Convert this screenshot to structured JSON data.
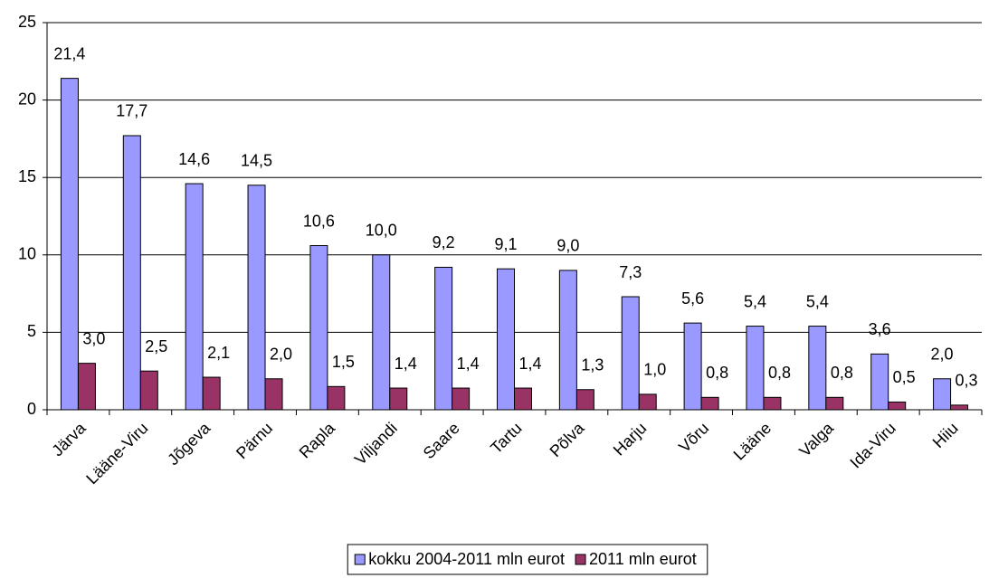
{
  "chart_data": {
    "type": "bar",
    "categories": [
      "Järva",
      "Lääne-Viru",
      "Jõgeva",
      "Pärnu",
      "Rapla",
      "Viljandi",
      "Saare",
      "Tartu",
      "Põlva",
      "Harju",
      "Võru",
      "Lääne",
      "Valga",
      "Ida-Viru",
      "Hiiu"
    ],
    "series": [
      {
        "name": "kokku 2004-2011 mln eurot",
        "color": "#9999ff",
        "values": [
          21.4,
          17.7,
          14.6,
          14.5,
          10.6,
          10.0,
          9.2,
          9.1,
          9.0,
          7.3,
          5.6,
          5.4,
          5.4,
          3.6,
          2.0
        ],
        "value_labels": [
          "21,4",
          "17,7",
          "14,6",
          "14,5",
          "10,6",
          "10,0",
          "9,2",
          "9,1",
          "9,0",
          "7,3",
          "5,6",
          "5,4",
          "5,4",
          "3,6",
          "2,0"
        ]
      },
      {
        "name": "2011 mln eurot",
        "color": "#993366",
        "values": [
          3.0,
          2.5,
          2.1,
          2.0,
          1.5,
          1.4,
          1.4,
          1.4,
          1.3,
          1.0,
          0.8,
          0.8,
          0.8,
          0.5,
          0.3
        ],
        "value_labels": [
          "3,0",
          "2,5",
          "2,1",
          "2,0",
          "1,5",
          "1,4",
          "1,4",
          "1,4",
          "1,3",
          "1,0",
          "0,8",
          "0,8",
          "0,8",
          "0,5",
          "0,3"
        ]
      }
    ],
    "ylim": [
      0,
      25
    ],
    "yticks": [
      0,
      5,
      10,
      15,
      20,
      25
    ],
    "grid": true,
    "legend": "bottom"
  }
}
